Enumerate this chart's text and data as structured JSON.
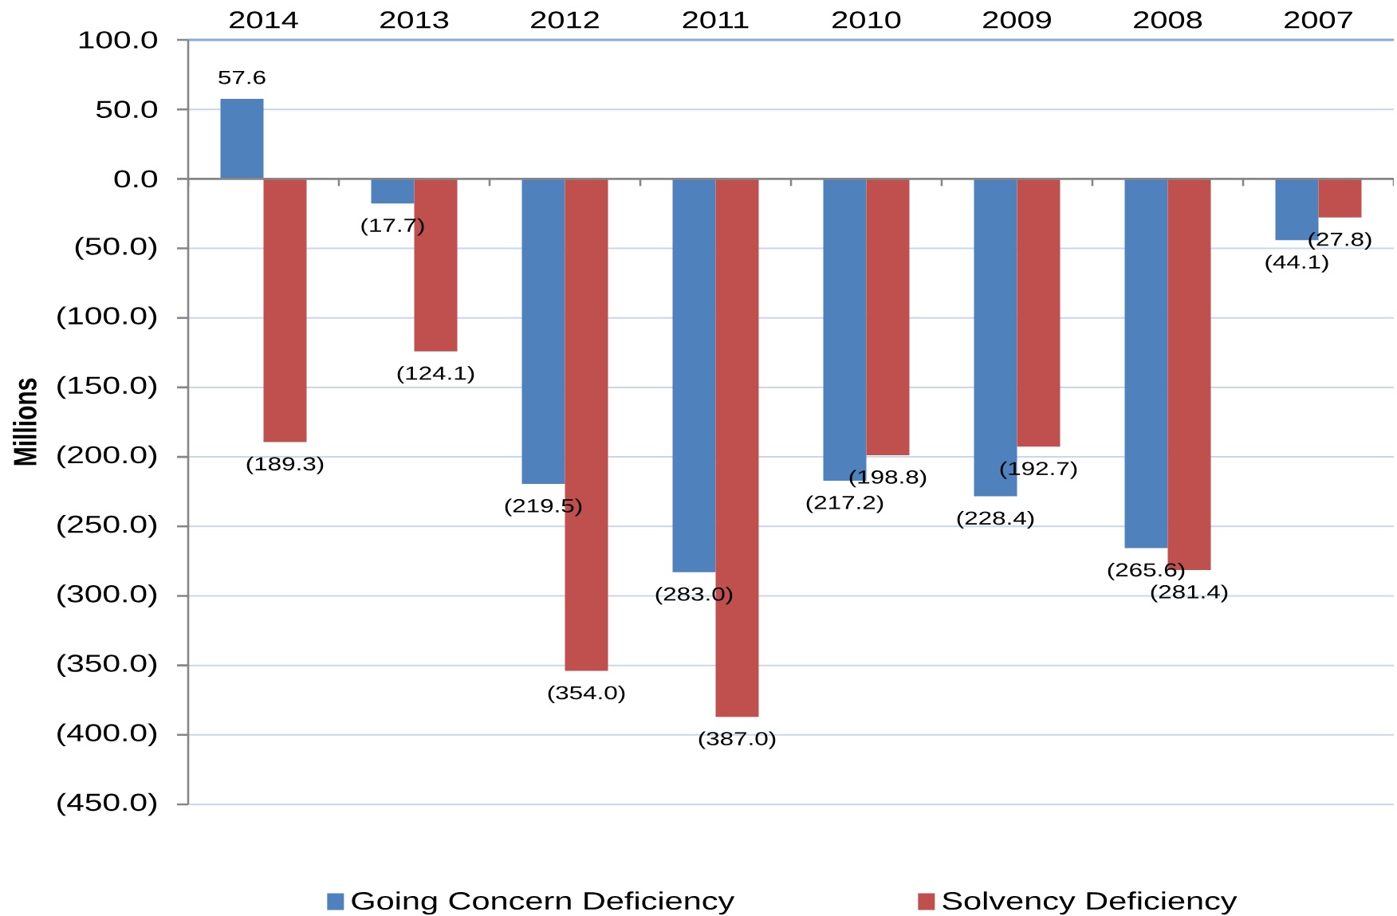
{
  "chart_data": {
    "type": "bar",
    "categories": [
      "2014",
      "2013",
      "2012",
      "2011",
      "2010",
      "2009",
      "2008",
      "2007"
    ],
    "ylabel": "Millions",
    "series": [
      {
        "name": "Going Concern Deficiency",
        "color": "#4f81bd",
        "values": [
          57.6,
          -17.7,
          -219.5,
          -283.0,
          -217.2,
          -228.4,
          -265.6,
          -44.1
        ],
        "value_labels": [
          "57.6",
          "(17.7)",
          "(219.5)",
          "(283.0)",
          "(217.2)",
          "(228.4)",
          "(265.6)",
          "(44.1)"
        ]
      },
      {
        "name": "Solvency Deficiency",
        "color": "#c0504d",
        "values": [
          -189.3,
          -124.1,
          -354.0,
          -387.0,
          -198.8,
          -192.7,
          -281.4,
          -27.8
        ],
        "value_labels": [
          "(189.3)",
          "(124.1)",
          "(354.0)",
          "(387.0)",
          "(198.8)",
          "(192.7)",
          "(281.4)",
          "(27.8)"
        ]
      }
    ],
    "ylim": [
      -450,
      100
    ],
    "yticks": [
      {
        "value": 100,
        "label": "100.0"
      },
      {
        "value": 50,
        "label": "50.0"
      },
      {
        "value": 0,
        "label": "0.0"
      },
      {
        "value": -50,
        "label": "(50.0)"
      },
      {
        "value": -100,
        "label": "(100.0)"
      },
      {
        "value": -150,
        "label": "(150.0)"
      },
      {
        "value": -200,
        "label": "(200.0)"
      },
      {
        "value": -250,
        "label": "(250.0)"
      },
      {
        "value": -300,
        "label": "(300.0)"
      },
      {
        "value": -350,
        "label": "(350.0)"
      },
      {
        "value": -400,
        "label": "(400.0)"
      },
      {
        "value": -450,
        "label": "(450.0)"
      }
    ],
    "grid": "y",
    "legend": "bottom"
  }
}
